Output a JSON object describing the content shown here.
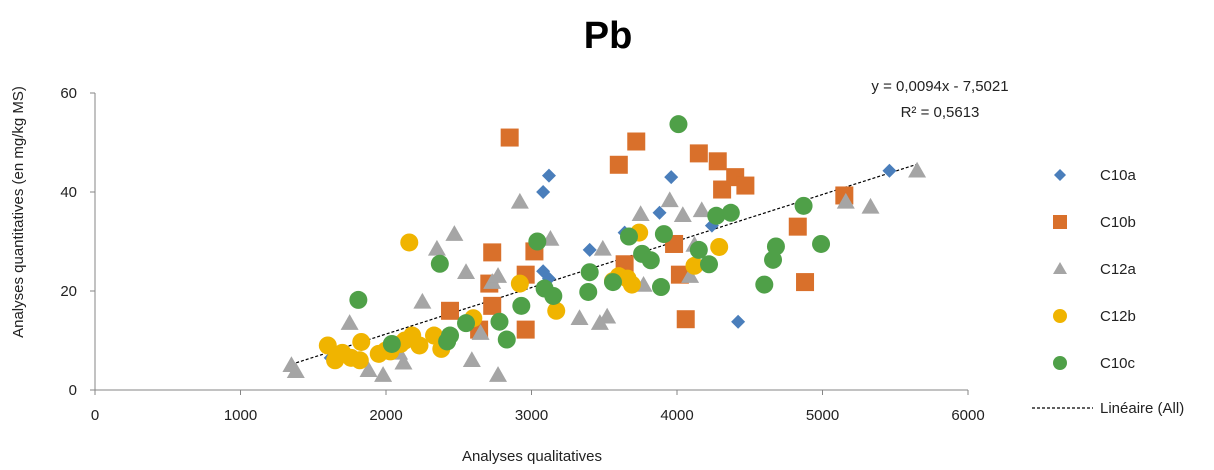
{
  "chart_data": {
    "type": "scatter",
    "title": "Pb",
    "xlabel": "Analyses qualitatives",
    "ylabel": "Analyses quantitatives (en mg/kg MS)",
    "xlim": [
      0,
      6000
    ],
    "ylim": [
      0,
      60
    ],
    "x_ticks": [
      "0",
      "1000",
      "2000",
      "3000",
      "4000",
      "5000",
      "6000"
    ],
    "y_ticks": [
      "0",
      "20",
      "40",
      "60"
    ],
    "grid": false,
    "legend_position": "right",
    "trendline": {
      "name": "Linéaire (All)",
      "equation": "y = 0,0094x - 7,5021",
      "r2": "R² = 0,5613",
      "slope": 0.0094,
      "intercept": -7.5021,
      "x_range": [
        1350,
        5650
      ]
    },
    "series": [
      {
        "name": "C10a",
        "marker": "diamond",
        "color": "#4a7ebb",
        "points": [
          [
            1620,
            6.5
          ],
          [
            3080,
            40
          ],
          [
            3120,
            43.3
          ],
          [
            3080,
            24
          ],
          [
            3120,
            22.5
          ],
          [
            3400,
            28.3
          ],
          [
            3640,
            31.8
          ],
          [
            3880,
            35.8
          ],
          [
            3960,
            43
          ],
          [
            4240,
            33.2
          ],
          [
            4420,
            13.8
          ],
          [
            5460,
            44.3
          ]
        ]
      },
      {
        "name": "C10b",
        "marker": "square",
        "color": "#d9702b",
        "points": [
          [
            2440,
            16
          ],
          [
            2640,
            12.2
          ],
          [
            2710,
            21.5
          ],
          [
            2730,
            27.8
          ],
          [
            2730,
            17
          ],
          [
            2850,
            51
          ],
          [
            2960,
            12.2
          ],
          [
            2960,
            23.3
          ],
          [
            3020,
            28
          ],
          [
            3600,
            45.5
          ],
          [
            3640,
            25.4
          ],
          [
            3720,
            50.2
          ],
          [
            3980,
            29.5
          ],
          [
            4020,
            23.3
          ],
          [
            4060,
            14.3
          ],
          [
            4150,
            47.8
          ],
          [
            4280,
            46.2
          ],
          [
            4310,
            40.5
          ],
          [
            4400,
            43
          ],
          [
            4470,
            41.3
          ],
          [
            4830,
            33
          ],
          [
            4880,
            21.8
          ],
          [
            5150,
            39.3
          ]
        ]
      },
      {
        "name": "C12a",
        "marker": "triangle",
        "color": "#a5a5a5",
        "points": [
          [
            1350,
            5
          ],
          [
            1380,
            3.8
          ],
          [
            1750,
            13.5
          ],
          [
            1880,
            4
          ],
          [
            1980,
            3
          ],
          [
            2090,
            7.5
          ],
          [
            2120,
            5.5
          ],
          [
            2250,
            17.8
          ],
          [
            2350,
            28.5
          ],
          [
            2470,
            31.5
          ],
          [
            2550,
            23.8
          ],
          [
            2590,
            6
          ],
          [
            2650,
            11.5
          ],
          [
            2730,
            21.8
          ],
          [
            2770,
            3
          ],
          [
            2770,
            23
          ],
          [
            2920,
            38
          ],
          [
            3130,
            30.5
          ],
          [
            3330,
            14.5
          ],
          [
            3470,
            13.5
          ],
          [
            3490,
            28.5
          ],
          [
            3520,
            14.8
          ],
          [
            3750,
            35.5
          ],
          [
            3770,
            21.2
          ],
          [
            3950,
            38.3
          ],
          [
            4040,
            35.3
          ],
          [
            4090,
            23
          ],
          [
            4120,
            29.3
          ],
          [
            4170,
            36.3
          ],
          [
            5160,
            38
          ],
          [
            5330,
            37
          ],
          [
            5650,
            44.3
          ]
        ]
      },
      {
        "name": "C12b",
        "marker": "circle",
        "color": "#f0b400",
        "points": [
          [
            1600,
            9
          ],
          [
            1650,
            6
          ],
          [
            1700,
            7.5
          ],
          [
            1760,
            6.5
          ],
          [
            1820,
            6
          ],
          [
            1830,
            9.7
          ],
          [
            1950,
            7.3
          ],
          [
            2000,
            8
          ],
          [
            2030,
            7.8
          ],
          [
            2100,
            9.3
          ],
          [
            2130,
            10
          ],
          [
            2160,
            29.8
          ],
          [
            2180,
            11
          ],
          [
            2230,
            9
          ],
          [
            2330,
            11
          ],
          [
            2380,
            8.3
          ],
          [
            2600,
            14.5
          ],
          [
            2920,
            21.5
          ],
          [
            3170,
            16
          ],
          [
            3560,
            22
          ],
          [
            3600,
            23
          ],
          [
            3660,
            22.5
          ],
          [
            3690,
            21.3
          ],
          [
            3740,
            31.8
          ],
          [
            4120,
            25.1
          ],
          [
            4290,
            28.9
          ]
        ]
      },
      {
        "name": "C10c",
        "marker": "circle",
        "color": "#4fa048",
        "points": [
          [
            1810,
            18.2
          ],
          [
            2040,
            9.3
          ],
          [
            2370,
            25.5
          ],
          [
            2420,
            9.8
          ],
          [
            2440,
            11
          ],
          [
            2550,
            13.5
          ],
          [
            2780,
            13.8
          ],
          [
            2830,
            10.2
          ],
          [
            2930,
            17
          ],
          [
            3040,
            30
          ],
          [
            3090,
            20.5
          ],
          [
            3150,
            19
          ],
          [
            3390,
            19.8
          ],
          [
            3400,
            23.8
          ],
          [
            3560,
            21.8
          ],
          [
            3670,
            31
          ],
          [
            3760,
            27.5
          ],
          [
            3820,
            26.2
          ],
          [
            3890,
            20.8
          ],
          [
            3910,
            31.5
          ],
          [
            4010,
            53.7
          ],
          [
            4150,
            28.3
          ],
          [
            4220,
            25.4
          ],
          [
            4270,
            35.2
          ],
          [
            4370,
            35.8
          ],
          [
            4600,
            21.3
          ],
          [
            4660,
            26.3
          ],
          [
            4680,
            29
          ],
          [
            4870,
            37.2
          ],
          [
            4990,
            29.5
          ]
        ]
      }
    ]
  }
}
